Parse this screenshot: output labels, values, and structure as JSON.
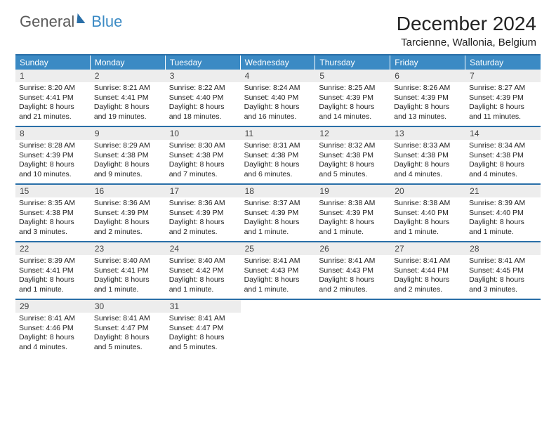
{
  "brand": {
    "text1": "General",
    "text2": "Blue"
  },
  "title": "December 2024",
  "location": "Tarcienne, Wallonia, Belgium",
  "colors": {
    "header_bar": "#3b8ac4",
    "rule": "#2a6fa8",
    "daynum_bg": "#ededed",
    "text": "#222222",
    "logo_gray": "#5a5a5a",
    "logo_blue": "#3b8ac4"
  },
  "layout": {
    "columns": 7,
    "weeks": 5
  },
  "dow": [
    "Sunday",
    "Monday",
    "Tuesday",
    "Wednesday",
    "Thursday",
    "Friday",
    "Saturday"
  ],
  "days": [
    {
      "n": 1,
      "lines": [
        "Sunrise: 8:20 AM",
        "Sunset: 4:41 PM",
        "Daylight: 8 hours",
        "and 21 minutes."
      ]
    },
    {
      "n": 2,
      "lines": [
        "Sunrise: 8:21 AM",
        "Sunset: 4:41 PM",
        "Daylight: 8 hours",
        "and 19 minutes."
      ]
    },
    {
      "n": 3,
      "lines": [
        "Sunrise: 8:22 AM",
        "Sunset: 4:40 PM",
        "Daylight: 8 hours",
        "and 18 minutes."
      ]
    },
    {
      "n": 4,
      "lines": [
        "Sunrise: 8:24 AM",
        "Sunset: 4:40 PM",
        "Daylight: 8 hours",
        "and 16 minutes."
      ]
    },
    {
      "n": 5,
      "lines": [
        "Sunrise: 8:25 AM",
        "Sunset: 4:39 PM",
        "Daylight: 8 hours",
        "and 14 minutes."
      ]
    },
    {
      "n": 6,
      "lines": [
        "Sunrise: 8:26 AM",
        "Sunset: 4:39 PM",
        "Daylight: 8 hours",
        "and 13 minutes."
      ]
    },
    {
      "n": 7,
      "lines": [
        "Sunrise: 8:27 AM",
        "Sunset: 4:39 PM",
        "Daylight: 8 hours",
        "and 11 minutes."
      ]
    },
    {
      "n": 8,
      "lines": [
        "Sunrise: 8:28 AM",
        "Sunset: 4:39 PM",
        "Daylight: 8 hours",
        "and 10 minutes."
      ]
    },
    {
      "n": 9,
      "lines": [
        "Sunrise: 8:29 AM",
        "Sunset: 4:38 PM",
        "Daylight: 8 hours",
        "and 9 minutes."
      ]
    },
    {
      "n": 10,
      "lines": [
        "Sunrise: 8:30 AM",
        "Sunset: 4:38 PM",
        "Daylight: 8 hours",
        "and 7 minutes."
      ]
    },
    {
      "n": 11,
      "lines": [
        "Sunrise: 8:31 AM",
        "Sunset: 4:38 PM",
        "Daylight: 8 hours",
        "and 6 minutes."
      ]
    },
    {
      "n": 12,
      "lines": [
        "Sunrise: 8:32 AM",
        "Sunset: 4:38 PM",
        "Daylight: 8 hours",
        "and 5 minutes."
      ]
    },
    {
      "n": 13,
      "lines": [
        "Sunrise: 8:33 AM",
        "Sunset: 4:38 PM",
        "Daylight: 8 hours",
        "and 4 minutes."
      ]
    },
    {
      "n": 14,
      "lines": [
        "Sunrise: 8:34 AM",
        "Sunset: 4:38 PM",
        "Daylight: 8 hours",
        "and 4 minutes."
      ]
    },
    {
      "n": 15,
      "lines": [
        "Sunrise: 8:35 AM",
        "Sunset: 4:38 PM",
        "Daylight: 8 hours",
        "and 3 minutes."
      ]
    },
    {
      "n": 16,
      "lines": [
        "Sunrise: 8:36 AM",
        "Sunset: 4:39 PM",
        "Daylight: 8 hours",
        "and 2 minutes."
      ]
    },
    {
      "n": 17,
      "lines": [
        "Sunrise: 8:36 AM",
        "Sunset: 4:39 PM",
        "Daylight: 8 hours",
        "and 2 minutes."
      ]
    },
    {
      "n": 18,
      "lines": [
        "Sunrise: 8:37 AM",
        "Sunset: 4:39 PM",
        "Daylight: 8 hours",
        "and 1 minute."
      ]
    },
    {
      "n": 19,
      "lines": [
        "Sunrise: 8:38 AM",
        "Sunset: 4:39 PM",
        "Daylight: 8 hours",
        "and 1 minute."
      ]
    },
    {
      "n": 20,
      "lines": [
        "Sunrise: 8:38 AM",
        "Sunset: 4:40 PM",
        "Daylight: 8 hours",
        "and 1 minute."
      ]
    },
    {
      "n": 21,
      "lines": [
        "Sunrise: 8:39 AM",
        "Sunset: 4:40 PM",
        "Daylight: 8 hours",
        "and 1 minute."
      ]
    },
    {
      "n": 22,
      "lines": [
        "Sunrise: 8:39 AM",
        "Sunset: 4:41 PM",
        "Daylight: 8 hours",
        "and 1 minute."
      ]
    },
    {
      "n": 23,
      "lines": [
        "Sunrise: 8:40 AM",
        "Sunset: 4:41 PM",
        "Daylight: 8 hours",
        "and 1 minute."
      ]
    },
    {
      "n": 24,
      "lines": [
        "Sunrise: 8:40 AM",
        "Sunset: 4:42 PM",
        "Daylight: 8 hours",
        "and 1 minute."
      ]
    },
    {
      "n": 25,
      "lines": [
        "Sunrise: 8:41 AM",
        "Sunset: 4:43 PM",
        "Daylight: 8 hours",
        "and 1 minute."
      ]
    },
    {
      "n": 26,
      "lines": [
        "Sunrise: 8:41 AM",
        "Sunset: 4:43 PM",
        "Daylight: 8 hours",
        "and 2 minutes."
      ]
    },
    {
      "n": 27,
      "lines": [
        "Sunrise: 8:41 AM",
        "Sunset: 4:44 PM",
        "Daylight: 8 hours",
        "and 2 minutes."
      ]
    },
    {
      "n": 28,
      "lines": [
        "Sunrise: 8:41 AM",
        "Sunset: 4:45 PM",
        "Daylight: 8 hours",
        "and 3 minutes."
      ]
    },
    {
      "n": 29,
      "lines": [
        "Sunrise: 8:41 AM",
        "Sunset: 4:46 PM",
        "Daylight: 8 hours",
        "and 4 minutes."
      ]
    },
    {
      "n": 30,
      "lines": [
        "Sunrise: 8:41 AM",
        "Sunset: 4:47 PM",
        "Daylight: 8 hours",
        "and 5 minutes."
      ]
    },
    {
      "n": 31,
      "lines": [
        "Sunrise: 8:41 AM",
        "Sunset: 4:47 PM",
        "Daylight: 8 hours",
        "and 5 minutes."
      ]
    }
  ]
}
